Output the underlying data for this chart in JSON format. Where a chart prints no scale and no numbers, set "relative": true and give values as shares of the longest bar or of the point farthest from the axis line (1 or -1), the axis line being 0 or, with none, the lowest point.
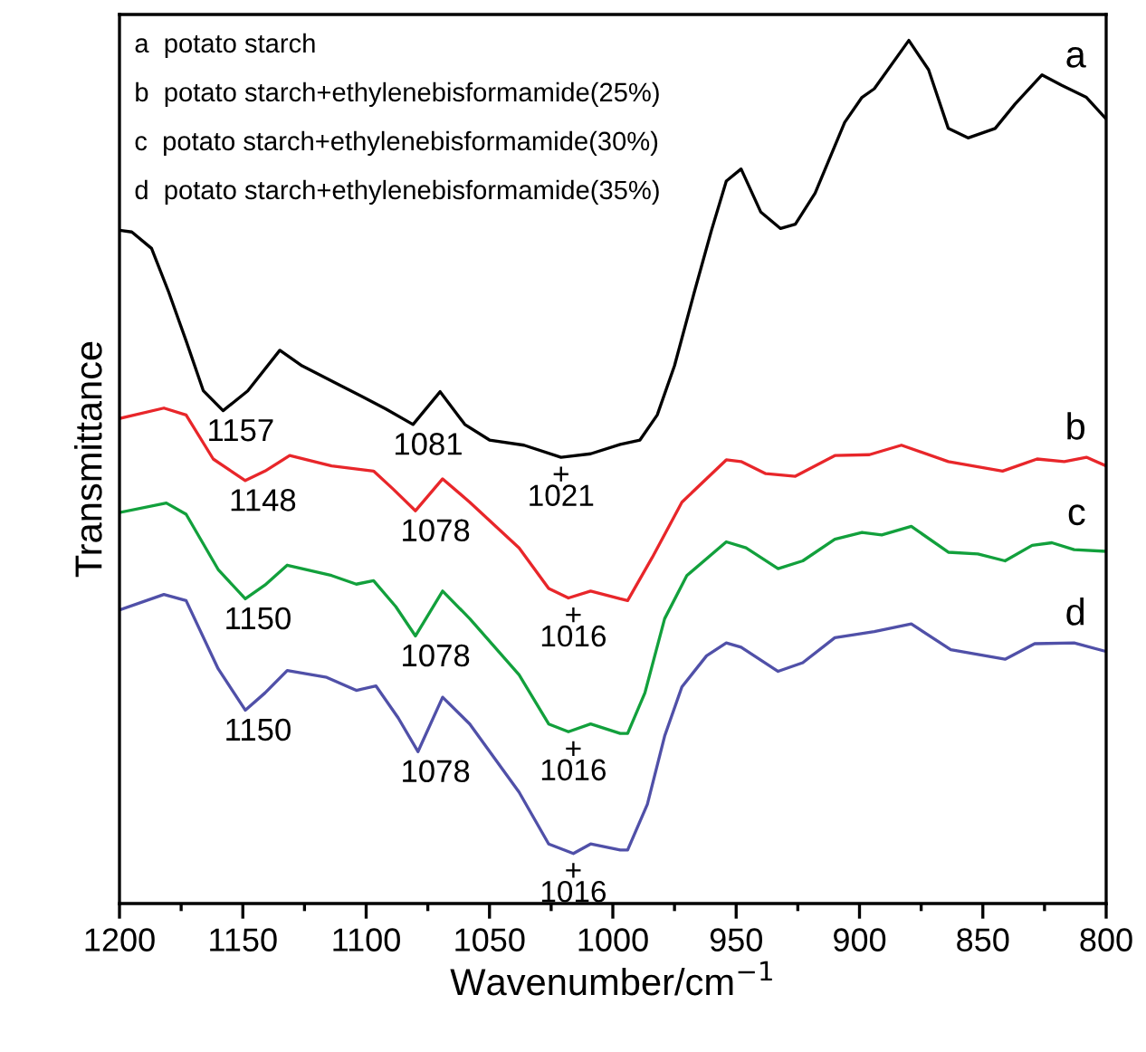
{
  "chart_data": {
    "type": "line",
    "relative": true,
    "xlabel": "Wavenumber/cm$^{−1}$",
    "ylabel": "Transmittance",
    "xlim": [
      1200,
      800
    ],
    "xticks": [
      1200,
      {
        "value": 1175,
        "label": null
      },
      1150,
      {
        "value": 1125,
        "label": null
      },
      1100,
      {
        "value": 1075,
        "label": null
      },
      1050,
      {
        "value": 1025,
        "label": null
      },
      1000,
      {
        "value": 975,
        "label": null
      },
      950,
      {
        "value": 925,
        "label": null
      },
      900,
      {
        "value": 875,
        "label": null
      },
      850,
      {
        "value": 825,
        "label": null
      },
      800
    ],
    "grid": false,
    "legend": false,
    "marker": "none",
    "line_style": "solid",
    "series": [
      {
        "name": "a",
        "color": "#000000",
        "x": [
          1200,
          1195,
          1187,
          1180,
          1173,
          1166,
          1158,
          1148,
          1135,
          1126,
          1111,
          1102,
          1092,
          1081,
          1070,
          1060,
          1050,
          1036,
          1021,
          1009,
          997,
          989,
          982,
          975,
          967,
          960,
          954,
          948,
          940,
          932,
          926,
          918,
          906,
          899,
          894,
          880,
          872,
          864,
          856,
          845,
          837,
          826,
          818,
          808,
          800
        ],
        "values": [
          0.78,
          0.778,
          0.759,
          0.708,
          0.652,
          0.594,
          0.571,
          0.594,
          0.641,
          0.623,
          0.601,
          0.588,
          0.573,
          0.555,
          0.593,
          0.555,
          0.537,
          0.531,
          0.517,
          0.521,
          0.532,
          0.537,
          0.566,
          0.623,
          0.708,
          0.78,
          0.837,
          0.851,
          0.801,
          0.782,
          0.787,
          0.823,
          0.905,
          0.934,
          0.944,
          1.0,
          0.966,
          0.898,
          0.887,
          0.898,
          0.926,
          0.96,
          0.948,
          0.934,
          0.909
        ]
      },
      {
        "name": "b",
        "color": "#e8262a",
        "x": [
          1200,
          1182,
          1173,
          1162,
          1149,
          1141,
          1131,
          1114,
          1097,
          1089,
          1080,
          1069,
          1058,
          1038,
          1026,
          1018,
          1009,
          997,
          994,
          984,
          972,
          954,
          948,
          938,
          926,
          910,
          896,
          883,
          864,
          842,
          828,
          817,
          808,
          800
        ],
        "values": [
          0.562,
          0.574,
          0.566,
          0.515,
          0.49,
          0.501,
          0.519,
          0.507,
          0.501,
          0.48,
          0.455,
          0.492,
          0.465,
          0.412,
          0.365,
          0.354,
          0.362,
          0.353,
          0.351,
          0.401,
          0.465,
          0.514,
          0.512,
          0.498,
          0.495,
          0.519,
          0.52,
          0.531,
          0.512,
          0.501,
          0.515,
          0.512,
          0.517,
          0.507
        ]
      },
      {
        "name": "c",
        "color": "#12a03c",
        "x": [
          1200,
          1181,
          1173,
          1160,
          1149,
          1141,
          1132,
          1114,
          1104,
          1097,
          1088,
          1080,
          1069,
          1058,
          1038,
          1026,
          1018,
          1009,
          997,
          994,
          987,
          979,
          970,
          954,
          946,
          933,
          923,
          910,
          899,
          891,
          879,
          864,
          852,
          841,
          830,
          822,
          813,
          800
        ],
        "values": [
          0.453,
          0.464,
          0.451,
          0.387,
          0.353,
          0.369,
          0.392,
          0.38,
          0.37,
          0.374,
          0.344,
          0.31,
          0.362,
          0.33,
          0.265,
          0.208,
          0.199,
          0.208,
          0.197,
          0.197,
          0.244,
          0.33,
          0.38,
          0.419,
          0.412,
          0.388,
          0.397,
          0.422,
          0.43,
          0.427,
          0.437,
          0.407,
          0.405,
          0.397,
          0.415,
          0.418,
          0.41,
          0.408
        ]
      },
      {
        "name": "d",
        "color": "#5050a8",
        "x": [
          1200,
          1182,
          1173,
          1160,
          1149,
          1141,
          1132,
          1116,
          1104,
          1096,
          1087,
          1079,
          1069,
          1058,
          1038,
          1026,
          1016,
          1009,
          997,
          994,
          986,
          979,
          972,
          962,
          954,
          948,
          933,
          923,
          910,
          894,
          879,
          863,
          841,
          829,
          813,
          800
        ],
        "values": [
          0.34,
          0.358,
          0.351,
          0.272,
          0.224,
          0.244,
          0.27,
          0.262,
          0.247,
          0.252,
          0.215,
          0.176,
          0.239,
          0.208,
          0.129,
          0.069,
          0.058,
          0.069,
          0.062,
          0.062,
          0.115,
          0.194,
          0.251,
          0.287,
          0.302,
          0.297,
          0.269,
          0.279,
          0.308,
          0.315,
          0.324,
          0.294,
          0.283,
          0.301,
          0.302,
          0.292
        ]
      }
    ],
    "annotations": [
      "a  potato starch",
      "b  potato starch+ethylenebisformamide(25%)",
      "c  potato starch+ethylenebisformamide(30%)",
      "d  potato starch+ethylenebisformamide(35%)",
      {
        "text": "1157",
        "x": 1157,
        "y": 0.571
      },
      {
        "text": "1081",
        "x": 1081,
        "y": 0.555
      },
      {
        "text": "+\n1021",
        "x": 1021,
        "y": 0.517
      },
      {
        "text": "1148",
        "x": 1148,
        "y": 0.49
      },
      {
        "text": "1078",
        "x": 1078,
        "y": 0.455
      },
      {
        "text": "+\n1016",
        "x": 1016,
        "y": 0.354
      },
      {
        "text": "1150",
        "x": 1150,
        "y": 0.353
      },
      {
        "text": "1078",
        "x": 1078,
        "y": 0.31
      },
      {
        "text": "+\n1016",
        "x": 1016,
        "y": 0.199
      },
      {
        "text": "1150",
        "x": 1150,
        "y": 0.224
      },
      {
        "text": "1078",
        "x": 1078,
        "y": 0.176
      },
      {
        "text": "+\n1016",
        "x": 1016,
        "y": 0.058
      }
    ]
  }
}
